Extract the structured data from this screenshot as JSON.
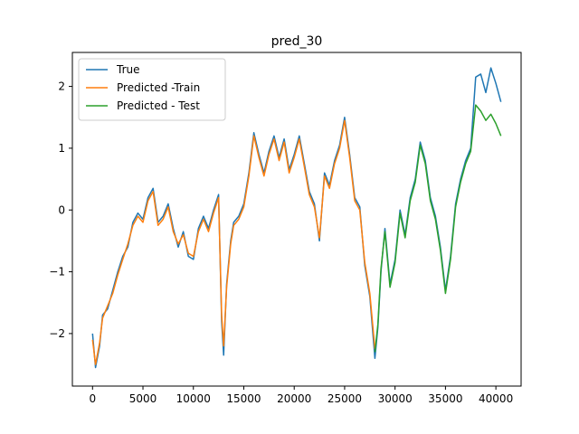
{
  "chart_data": {
    "type": "line",
    "title": "pred_30",
    "xlabel": "",
    "ylabel": "",
    "xlim": [
      -2000,
      42500
    ],
    "ylim": [
      -2.85,
      2.55
    ],
    "xticks": [
      0,
      5000,
      10000,
      15000,
      20000,
      25000,
      30000,
      35000,
      40000
    ],
    "yticks": [
      -2,
      -1,
      0,
      1,
      2
    ],
    "grid": false,
    "legend_position": "top-left",
    "series": [
      {
        "name": "True",
        "color": "#1f77b4",
        "x": [
          0,
          300,
          700,
          1000,
          1500,
          2000,
          2500,
          3000,
          3500,
          4000,
          4500,
          5000,
          5500,
          6000,
          6500,
          7000,
          7500,
          8000,
          8500,
          9000,
          9500,
          10000,
          10500,
          11000,
          11500,
          12000,
          12500,
          12800,
          13000,
          13300,
          13700,
          14000,
          14500,
          15000,
          15500,
          16000,
          16500,
          17000,
          17500,
          18000,
          18500,
          19000,
          19500,
          20000,
          20500,
          21000,
          21500,
          22000,
          22500,
          23000,
          23500,
          24000,
          24500,
          25000,
          25500,
          26000,
          26500,
          27000,
          27500,
          28000,
          28300,
          28600,
          29000,
          29500,
          30000,
          30500,
          31000,
          31500,
          32000,
          32500,
          33000,
          33500,
          34000,
          34500,
          35000,
          35500,
          36000,
          36500,
          37000,
          37500,
          38000,
          38500,
          39000,
          39500,
          40000,
          40500
        ],
        "values": [
          -2.0,
          -2.55,
          -2.2,
          -1.7,
          -1.6,
          -1.3,
          -1.0,
          -0.75,
          -0.6,
          -0.2,
          -0.05,
          -0.15,
          0.2,
          0.35,
          -0.2,
          -0.1,
          0.1,
          -0.3,
          -0.6,
          -0.35,
          -0.75,
          -0.8,
          -0.3,
          -0.1,
          -0.3,
          0.0,
          0.25,
          -1.8,
          -2.35,
          -1.2,
          -0.5,
          -0.2,
          -0.1,
          0.1,
          0.6,
          1.25,
          0.9,
          0.6,
          0.95,
          1.2,
          0.85,
          1.15,
          0.65,
          0.9,
          1.2,
          0.75,
          0.3,
          0.1,
          -0.5,
          0.6,
          0.4,
          0.8,
          1.05,
          1.5,
          0.9,
          0.2,
          0.05,
          -0.9,
          -1.4,
          -2.4,
          -1.9,
          -1.0,
          -0.3,
          -1.2,
          -0.8,
          0.0,
          -0.4,
          0.2,
          0.5,
          1.1,
          0.8,
          0.2,
          -0.1,
          -0.6,
          -1.3,
          -0.75,
          0.1,
          0.5,
          0.8,
          1.0,
          2.15,
          2.2,
          1.9,
          2.3,
          2.05,
          1.75
        ]
      },
      {
        "name": "Predicted -Train",
        "color": "#ff7f0e",
        "x": [
          0,
          300,
          700,
          1000,
          1500,
          2000,
          2500,
          3000,
          3500,
          4000,
          4500,
          5000,
          5500,
          6000,
          6500,
          7000,
          7500,
          8000,
          8500,
          9000,
          9500,
          10000,
          10500,
          11000,
          11500,
          12000,
          12500,
          12800,
          13000,
          13300,
          13700,
          14000,
          14500,
          15000,
          15500,
          16000,
          16500,
          17000,
          17500,
          18000,
          18500,
          19000,
          19500,
          20000,
          20500,
          21000,
          21500,
          22000,
          22500,
          23000,
          23500,
          24000,
          24500,
          25000,
          25500,
          26000,
          26500,
          27000,
          27500,
          28000
        ],
        "values": [
          -2.1,
          -2.5,
          -2.15,
          -1.75,
          -1.55,
          -1.35,
          -1.05,
          -0.8,
          -0.55,
          -0.25,
          -0.1,
          -0.2,
          0.15,
          0.3,
          -0.25,
          -0.15,
          0.05,
          -0.35,
          -0.55,
          -0.4,
          -0.7,
          -0.75,
          -0.35,
          -0.15,
          -0.35,
          -0.05,
          0.2,
          -1.7,
          -2.2,
          -1.25,
          -0.55,
          -0.25,
          -0.15,
          0.05,
          0.55,
          1.2,
          0.85,
          0.55,
          0.9,
          1.15,
          0.8,
          1.1,
          0.6,
          0.85,
          1.15,
          0.7,
          0.25,
          0.05,
          -0.45,
          0.55,
          0.35,
          0.75,
          1.0,
          1.45,
          0.85,
          0.15,
          0.0,
          -0.85,
          -1.35,
          -2.25
        ]
      },
      {
        "name": "Predicted - Test",
        "color": "#2ca02c",
        "x": [
          28000,
          28300,
          28600,
          29000,
          29500,
          30000,
          30500,
          31000,
          31500,
          32000,
          32500,
          33000,
          33500,
          34000,
          34500,
          35000,
          35500,
          36000,
          36500,
          37000,
          37500,
          38000,
          38500,
          39000,
          39500,
          40000,
          40500
        ],
        "values": [
          -2.3,
          -1.85,
          -0.95,
          -0.35,
          -1.25,
          -0.85,
          -0.05,
          -0.45,
          0.15,
          0.45,
          1.05,
          0.75,
          0.15,
          -0.15,
          -0.65,
          -1.35,
          -0.8,
          0.05,
          0.45,
          0.75,
          0.95,
          1.7,
          1.6,
          1.45,
          1.55,
          1.4,
          1.2
        ]
      }
    ]
  }
}
